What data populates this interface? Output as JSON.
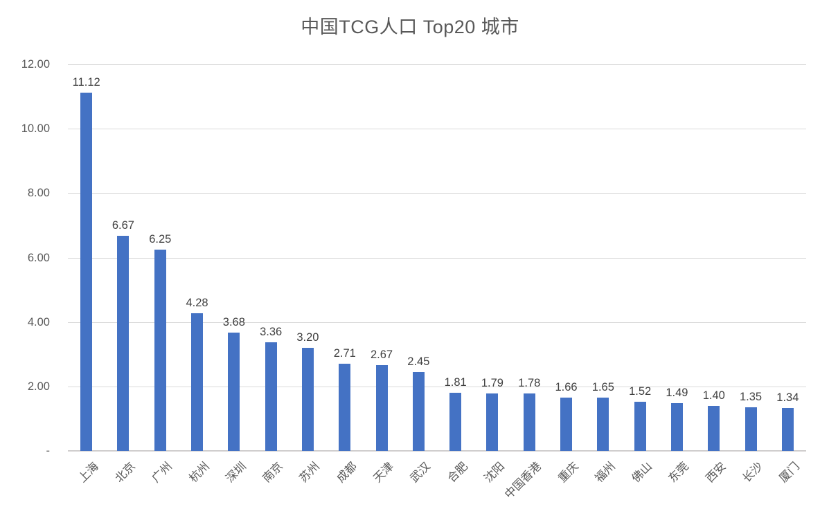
{
  "chart_data": {
    "type": "bar",
    "title": "中国TCG人口 Top20 城市",
    "xlabel": "",
    "ylabel": "",
    "categories": [
      "上海",
      "北京",
      "广州",
      "杭州",
      "深圳",
      "南京",
      "苏州",
      "成都",
      "天津",
      "武汉",
      "合肥",
      "沈阳",
      "中国香港",
      "重庆",
      "福州",
      "佛山",
      "东莞",
      "西安",
      "长沙",
      "厦门"
    ],
    "values": [
      11.12,
      6.67,
      6.25,
      4.28,
      3.68,
      3.36,
      3.2,
      2.71,
      2.67,
      2.45,
      1.81,
      1.79,
      1.78,
      1.66,
      1.65,
      1.52,
      1.49,
      1.4,
      1.35,
      1.34
    ],
    "value_labels": [
      "11.12",
      "6.67",
      "6.25",
      "4.28",
      "3.68",
      "3.36",
      "3.20",
      "2.71",
      "2.67",
      "2.45",
      "1.81",
      "1.79",
      "1.78",
      "1.66",
      "1.65",
      "1.52",
      "1.49",
      "1.40",
      "1.35",
      "1.34"
    ],
    "ylim": [
      0,
      12
    ],
    "yticks": [
      {
        "value": 0,
        "label": "-"
      },
      {
        "value": 2,
        "label": "2.00"
      },
      {
        "value": 4,
        "label": "4.00"
      },
      {
        "value": 6,
        "label": "6.00"
      },
      {
        "value": 8,
        "label": "8.00"
      },
      {
        "value": 10,
        "label": "10.00"
      },
      {
        "value": 12,
        "label": "12.00"
      }
    ],
    "grid": true,
    "legend": "none",
    "colors": {
      "bar": "#4472C4",
      "title": "#595959",
      "axis_labels": "#595959",
      "data_labels": "#404040",
      "gridline": "#D9D9D9",
      "baseline": "#D0CECE",
      "background": "#FFFFFF"
    }
  }
}
